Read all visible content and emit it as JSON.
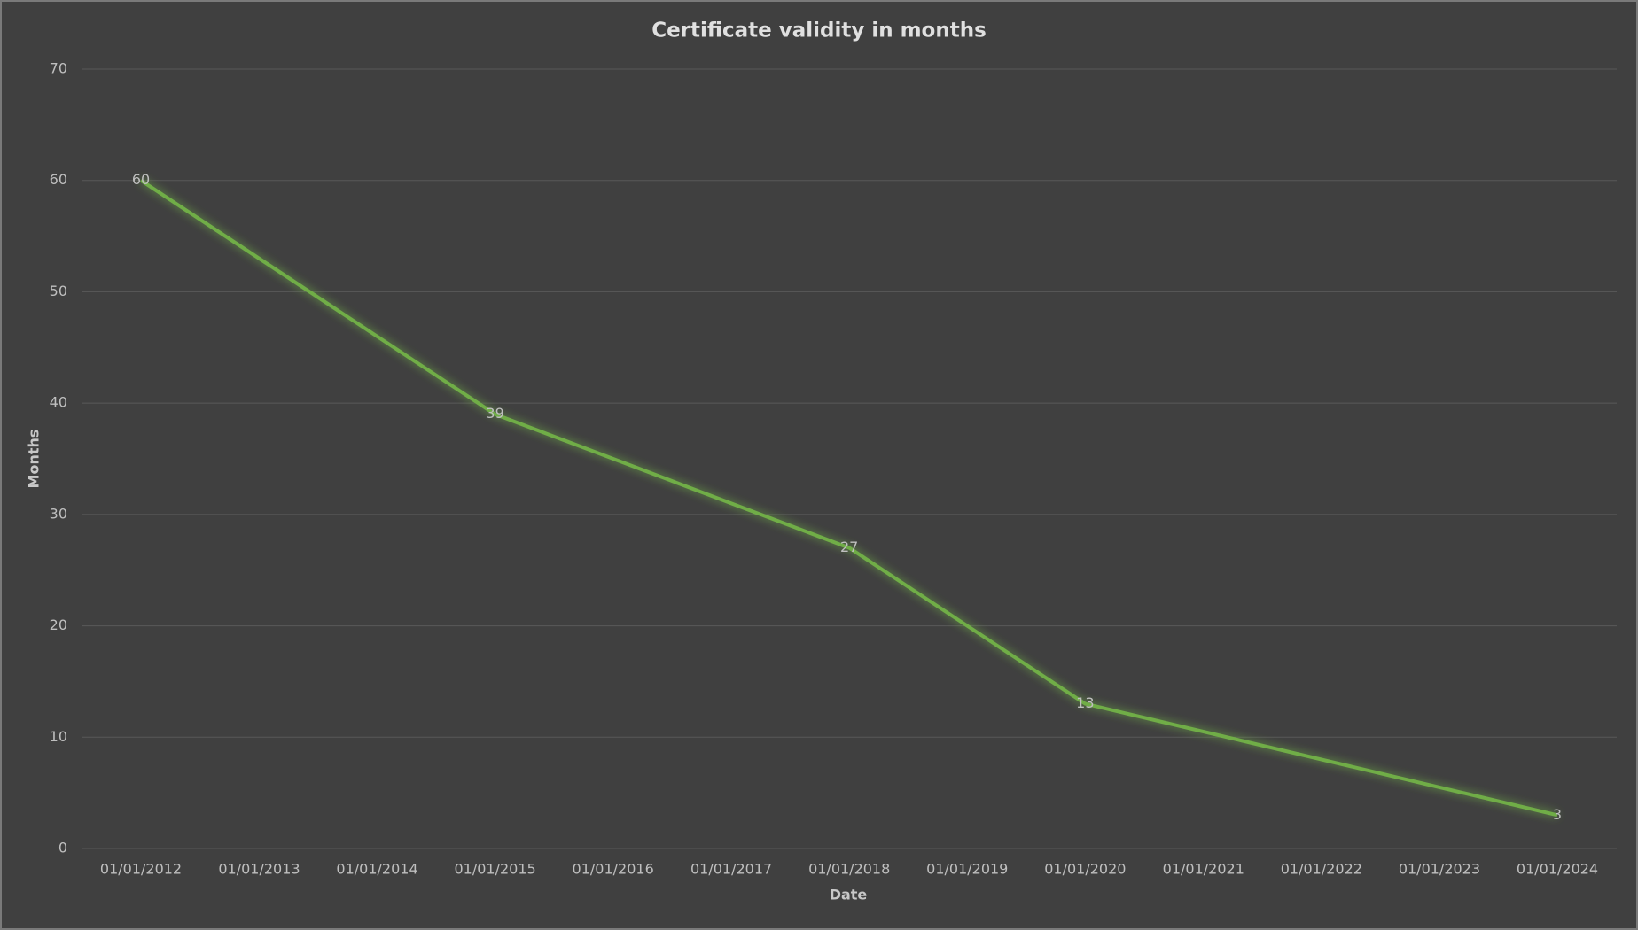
{
  "chart_data": {
    "type": "line",
    "title": "Certificate validity in months",
    "x_label": "Date",
    "y_label": "Months",
    "x": [
      "01/01/2012",
      "01/01/2015",
      "01/01/2018",
      "01/01/2020",
      "01/01/2024"
    ],
    "series": [
      {
        "name": "Months",
        "color": "#70ad47",
        "values": [
          60,
          39,
          27,
          13,
          3
        ]
      }
    ],
    "xticks": [
      "01/01/2012",
      "01/01/2013",
      "01/01/2014",
      "01/01/2015",
      "01/01/2016",
      "01/01/2017",
      "01/01/2018",
      "01/01/2019",
      "01/01/2020",
      "01/01/2021",
      "01/01/2022",
      "01/01/2023",
      "01/01/2024"
    ],
    "ylim": [
      0,
      70
    ],
    "yticks": [
      0,
      10,
      20,
      30,
      40,
      50,
      60,
      70
    ],
    "grid": true,
    "data_labels": true
  }
}
